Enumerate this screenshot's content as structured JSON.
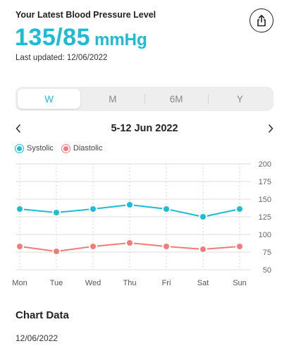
{
  "header": {
    "title": "Your Latest Blood Pressure Level",
    "share_icon": "share-icon"
  },
  "reading": {
    "value": "135/85",
    "unit": "mmHg",
    "last_updated": "Last updated: 12/06/2022"
  },
  "period_tabs": {
    "items": [
      {
        "label": "W",
        "active": true
      },
      {
        "label": "M",
        "active": false
      },
      {
        "label": "6M",
        "active": false
      },
      {
        "label": "Y",
        "active": false
      }
    ]
  },
  "date_nav": {
    "range": "5-12 Jun 2022",
    "prev_icon": "chevron-left-icon",
    "next_icon": "chevron-right-icon"
  },
  "colors": {
    "accent": "#1cbcd6",
    "systolic": "#1cbcd6",
    "diastolic": "#f47b78"
  },
  "chart_data": {
    "type": "line",
    "categories": [
      "Mon",
      "Tue",
      "Wed",
      "Thu",
      "Fri",
      "Sat",
      "Sun"
    ],
    "series": [
      {
        "name": "Systolic",
        "values": [
          136,
          131,
          136,
          142,
          136,
          125,
          136
        ]
      },
      {
        "name": "Diastolic",
        "values": [
          83,
          76,
          83,
          88,
          83,
          79,
          83
        ]
      }
    ],
    "yticks": [
      200,
      175,
      150,
      125,
      100,
      75,
      50
    ],
    "ylim": [
      50,
      200
    ],
    "grid": true,
    "legend": "top-left"
  },
  "chart_section": {
    "title": "Chart Data",
    "row_date": "12/06/2022"
  }
}
